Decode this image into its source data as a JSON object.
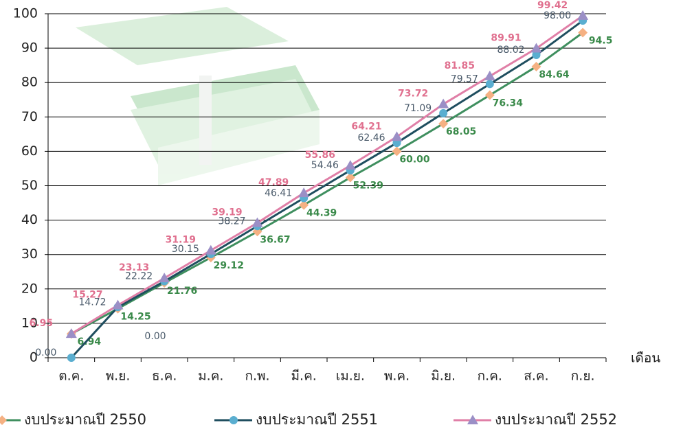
{
  "chart_data": {
    "type": "line",
    "x_label": "เดือน",
    "categories": [
      "ต.ค.",
      "พ.ย.",
      "ธ.ค.",
      "ม.ค.",
      "ก.พ.",
      "มี.ค.",
      "เม.ย.",
      "พ.ค.",
      "มิ.ย.",
      "ก.ค.",
      "ส.ค.",
      "ก.ย."
    ],
    "ylim": [
      0,
      100
    ],
    "yticks": [
      0,
      10,
      20,
      30,
      40,
      50,
      60,
      70,
      80,
      90,
      100
    ],
    "grid": true,
    "annotation": "0.00",
    "series": [
      {
        "name": "งบประมาณปี 2550",
        "color": "#3f8f5f",
        "marker_color": "#f5b183",
        "marker": "diamond",
        "label_color": "#3a8a4a",
        "values": [
          6.94,
          14.25,
          21.76,
          29.12,
          36.67,
          44.39,
          52.39,
          60.0,
          68.05,
          76.34,
          84.64,
          94.5
        ],
        "value_labels": [
          "6.94",
          "14.25",
          "21.76",
          "29.12",
          "36.67",
          "44.39",
          "52.39",
          "60.00",
          "68.05",
          "76.34",
          "84.64",
          "94.5"
        ]
      },
      {
        "name": "งบประมาณปี 2551",
        "color": "#1f4e5f",
        "marker_color": "#5aaed0",
        "marker": "circle",
        "label_color": "#4a5a6a",
        "values": [
          0.0,
          14.72,
          22.22,
          30.15,
          38.27,
          46.41,
          54.46,
          62.46,
          71.09,
          79.57,
          88.02,
          98.0
        ],
        "value_labels": [
          "0.00",
          "14.72",
          "22.22",
          "30.15",
          "38.27",
          "46.41",
          "54.46",
          "62.46",
          "71.09",
          "79.57",
          "88.02",
          "98.00"
        ]
      },
      {
        "name": "งบประมาณปี 2552",
        "color": "#e07fa7",
        "marker_color": "#9b8fc6",
        "marker": "triangle",
        "label_color": "#e0708f",
        "values": [
          6.95,
          15.27,
          23.13,
          31.19,
          39.19,
          47.89,
          55.86,
          64.21,
          73.72,
          81.85,
          89.91,
          99.42
        ],
        "value_labels": [
          "6.95",
          "15.27",
          "23.13",
          "31.19",
          "39.19",
          "47.89",
          "55.86",
          "64.21",
          "73.72",
          "81.85",
          "89.91",
          "99.42"
        ]
      }
    ]
  }
}
